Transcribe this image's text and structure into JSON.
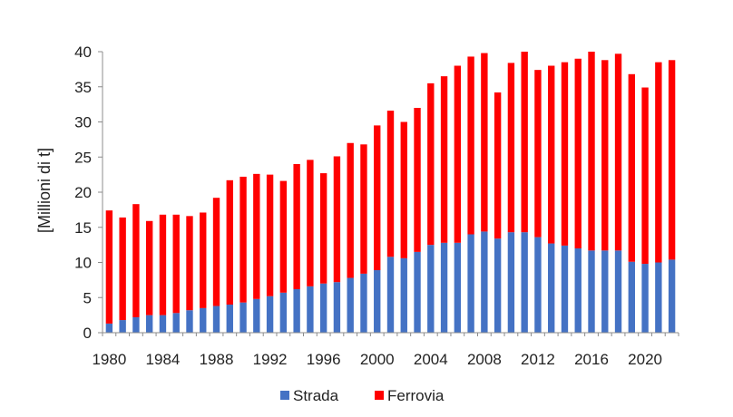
{
  "chart_data": {
    "type": "bar",
    "stacked": true,
    "title": "",
    "xlabel": "",
    "ylabel": "[Millioni di t]",
    "ylim": [
      0,
      40
    ],
    "yticks": [
      0,
      5,
      10,
      15,
      20,
      25,
      30,
      35,
      40
    ],
    "grid": false,
    "legend_position": "bottom",
    "categories": [
      1980,
      1981,
      1982,
      1983,
      1984,
      1985,
      1986,
      1987,
      1988,
      1989,
      1990,
      1991,
      1992,
      1993,
      1994,
      1995,
      1996,
      1997,
      1998,
      1999,
      2000,
      2001,
      2002,
      2003,
      2004,
      2005,
      2006,
      2007,
      2008,
      2009,
      2010,
      2011,
      2012,
      2013,
      2014,
      2015,
      2016,
      2017,
      2018,
      2019,
      2020,
      2021,
      2022
    ],
    "xtick_labels": [
      "1980",
      "1984",
      "1988",
      "1992",
      "1996",
      "2000",
      "2004",
      "2008",
      "2012",
      "2016",
      "2020"
    ],
    "series": [
      {
        "name": "Strada",
        "color": "#4472C4",
        "values": [
          1.3,
          1.8,
          2.2,
          2.5,
          2.5,
          2.8,
          3.2,
          3.5,
          3.8,
          4.0,
          4.3,
          4.8,
          5.2,
          5.7,
          6.2,
          6.6,
          7.0,
          7.2,
          7.8,
          8.4,
          8.9,
          10.8,
          10.6,
          11.5,
          12.5,
          12.8,
          12.8,
          14.0,
          14.4,
          13.4,
          14.3,
          14.3,
          13.6,
          12.7,
          12.4,
          12.0,
          11.7,
          11.7,
          11.7,
          10.1,
          9.8,
          10.0,
          10.4
        ]
      },
      {
        "name": "Ferrovia",
        "color": "#FF0000",
        "values": [
          16.1,
          14.6,
          16.1,
          13.4,
          14.3,
          14.0,
          13.4,
          13.6,
          15.4,
          17.7,
          17.9,
          17.8,
          17.3,
          15.9,
          17.8,
          18.0,
          15.7,
          17.9,
          19.2,
          18.4,
          20.6,
          20.8,
          19.4,
          20.5,
          23.0,
          23.7,
          25.2,
          25.3,
          25.4,
          20.8,
          24.1,
          25.7,
          23.8,
          25.3,
          26.1,
          27.0,
          28.3,
          27.1,
          28.0,
          26.7,
          25.1,
          28.5,
          28.4
        ]
      }
    ]
  }
}
